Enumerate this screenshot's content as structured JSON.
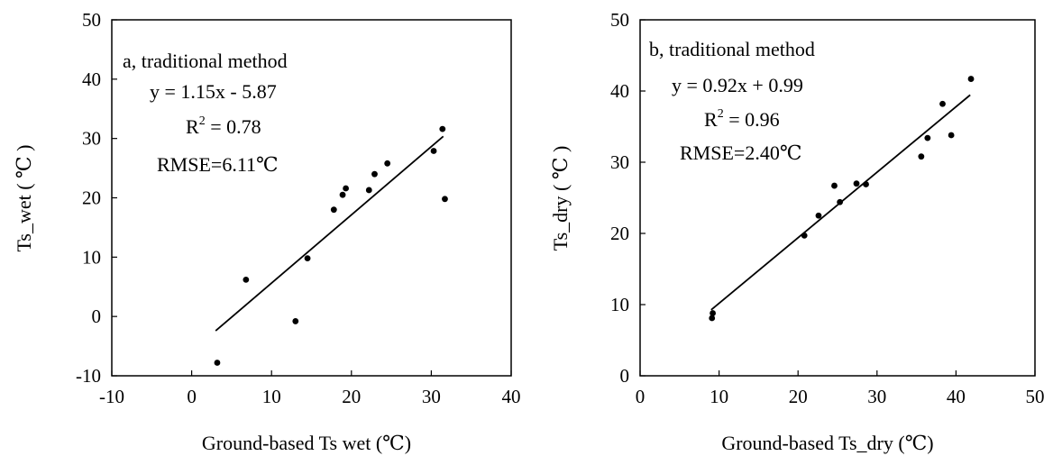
{
  "chart_data": [
    {
      "type": "scatter",
      "panel": "a",
      "annotation_lines": [
        "a, traditional method",
        "y = 1.15x - 5.87",
        "R",
        "2",
        " = 0.78",
        "RMSE=6.11℃"
      ],
      "xlabel": "Ground-based Ts  wet (℃)",
      "ylabel": "Ts_wet ( ℃ )",
      "xlim": [
        -10,
        40
      ],
      "ylim": [
        -10,
        50
      ],
      "xticks": [
        -10,
        0,
        10,
        20,
        30,
        40
      ],
      "yticks": [
        -10,
        0,
        10,
        20,
        30,
        40,
        50
      ],
      "xtick_labels": [
        "-10",
        "0",
        "10",
        "20",
        "30",
        "40"
      ],
      "ytick_labels": [
        "-10",
        "0",
        "10",
        "20",
        "30",
        "40",
        "50"
      ],
      "grid": false,
      "points": [
        [
          3.2,
          -7.8
        ],
        [
          6.8,
          6.2
        ],
        [
          13.0,
          -0.8
        ],
        [
          14.5,
          9.8
        ],
        [
          17.8,
          18.0
        ],
        [
          18.9,
          20.5
        ],
        [
          19.3,
          21.6
        ],
        [
          22.2,
          21.3
        ],
        [
          22.9,
          24.0
        ],
        [
          24.5,
          25.8
        ],
        [
          30.3,
          27.9
        ],
        [
          31.4,
          31.6
        ],
        [
          31.7,
          19.8
        ]
      ],
      "fit": {
        "slope": 1.15,
        "intercept": -5.87,
        "x_range": [
          3.0,
          31.5
        ]
      }
    },
    {
      "type": "scatter",
      "panel": "b",
      "annotation_lines": [
        "b, traditional method",
        "y = 0.92x + 0.99",
        "R",
        "2",
        " = 0.96",
        "RMSE=2.40℃"
      ],
      "xlabel": "Ground-based Ts_dry (℃)",
      "ylabel": "Ts_dry ( ℃ )",
      "xlim": [
        0,
        50
      ],
      "ylim": [
        0,
        50
      ],
      "xticks": [
        0,
        10,
        20,
        30,
        40,
        50
      ],
      "yticks": [
        0,
        10,
        20,
        30,
        40,
        50
      ],
      "xtick_labels": [
        "0",
        "10",
        "20",
        "30",
        "40",
        "50"
      ],
      "ytick_labels": [
        "0",
        "10",
        "20",
        "30",
        "40",
        "50"
      ],
      "grid": false,
      "points": [
        [
          9.1,
          8.1
        ],
        [
          9.2,
          8.8
        ],
        [
          20.8,
          19.7
        ],
        [
          22.6,
          22.5
        ],
        [
          24.6,
          26.7
        ],
        [
          25.3,
          24.4
        ],
        [
          27.4,
          27.0
        ],
        [
          28.6,
          26.9
        ],
        [
          35.6,
          30.8
        ],
        [
          36.4,
          33.4
        ],
        [
          38.3,
          38.2
        ],
        [
          39.4,
          33.8
        ],
        [
          41.9,
          41.7
        ]
      ],
      "fit": {
        "slope": 0.92,
        "intercept": 0.99,
        "x_range": [
          9.0,
          41.8
        ]
      }
    }
  ]
}
